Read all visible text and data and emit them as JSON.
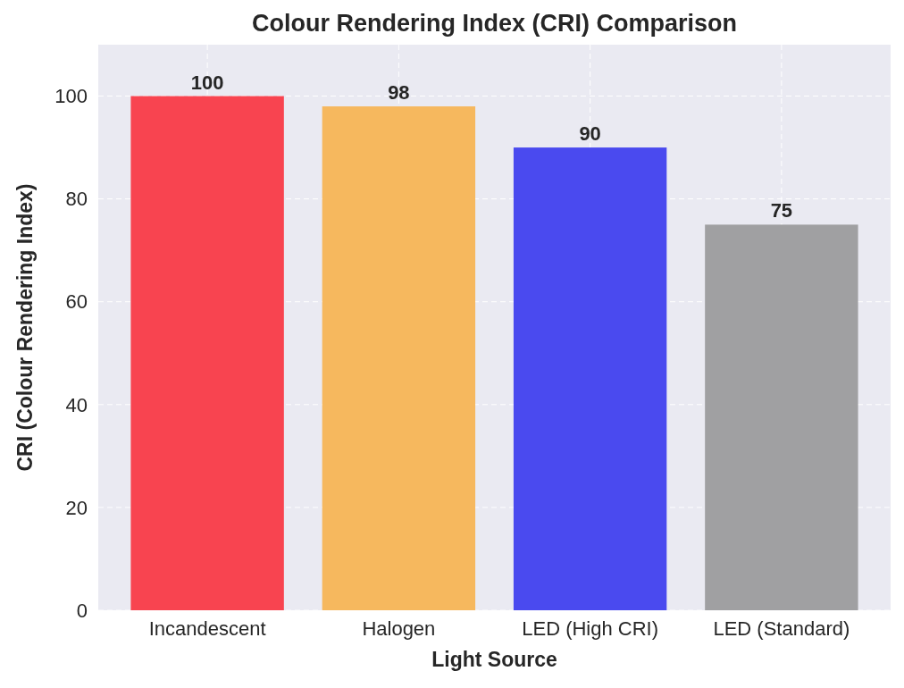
{
  "chart_data": {
    "type": "bar",
    "title": "Colour Rendering Index (CRI) Comparison",
    "xlabel": "Light Source",
    "ylabel": "CRI (Colour Rendering Index)",
    "categories": [
      "Incandescent",
      "Halogen",
      "LED (High CRI)",
      "LED (Standard)"
    ],
    "values": [
      100,
      98,
      90,
      75
    ],
    "colors": [
      "#f84450",
      "#f6b85e",
      "#4a4aef",
      "#a0a0a2"
    ],
    "ylim": [
      0,
      110
    ],
    "yticks": [
      0,
      20,
      40,
      60,
      80,
      100
    ],
    "grid": true,
    "data_labels": true
  }
}
